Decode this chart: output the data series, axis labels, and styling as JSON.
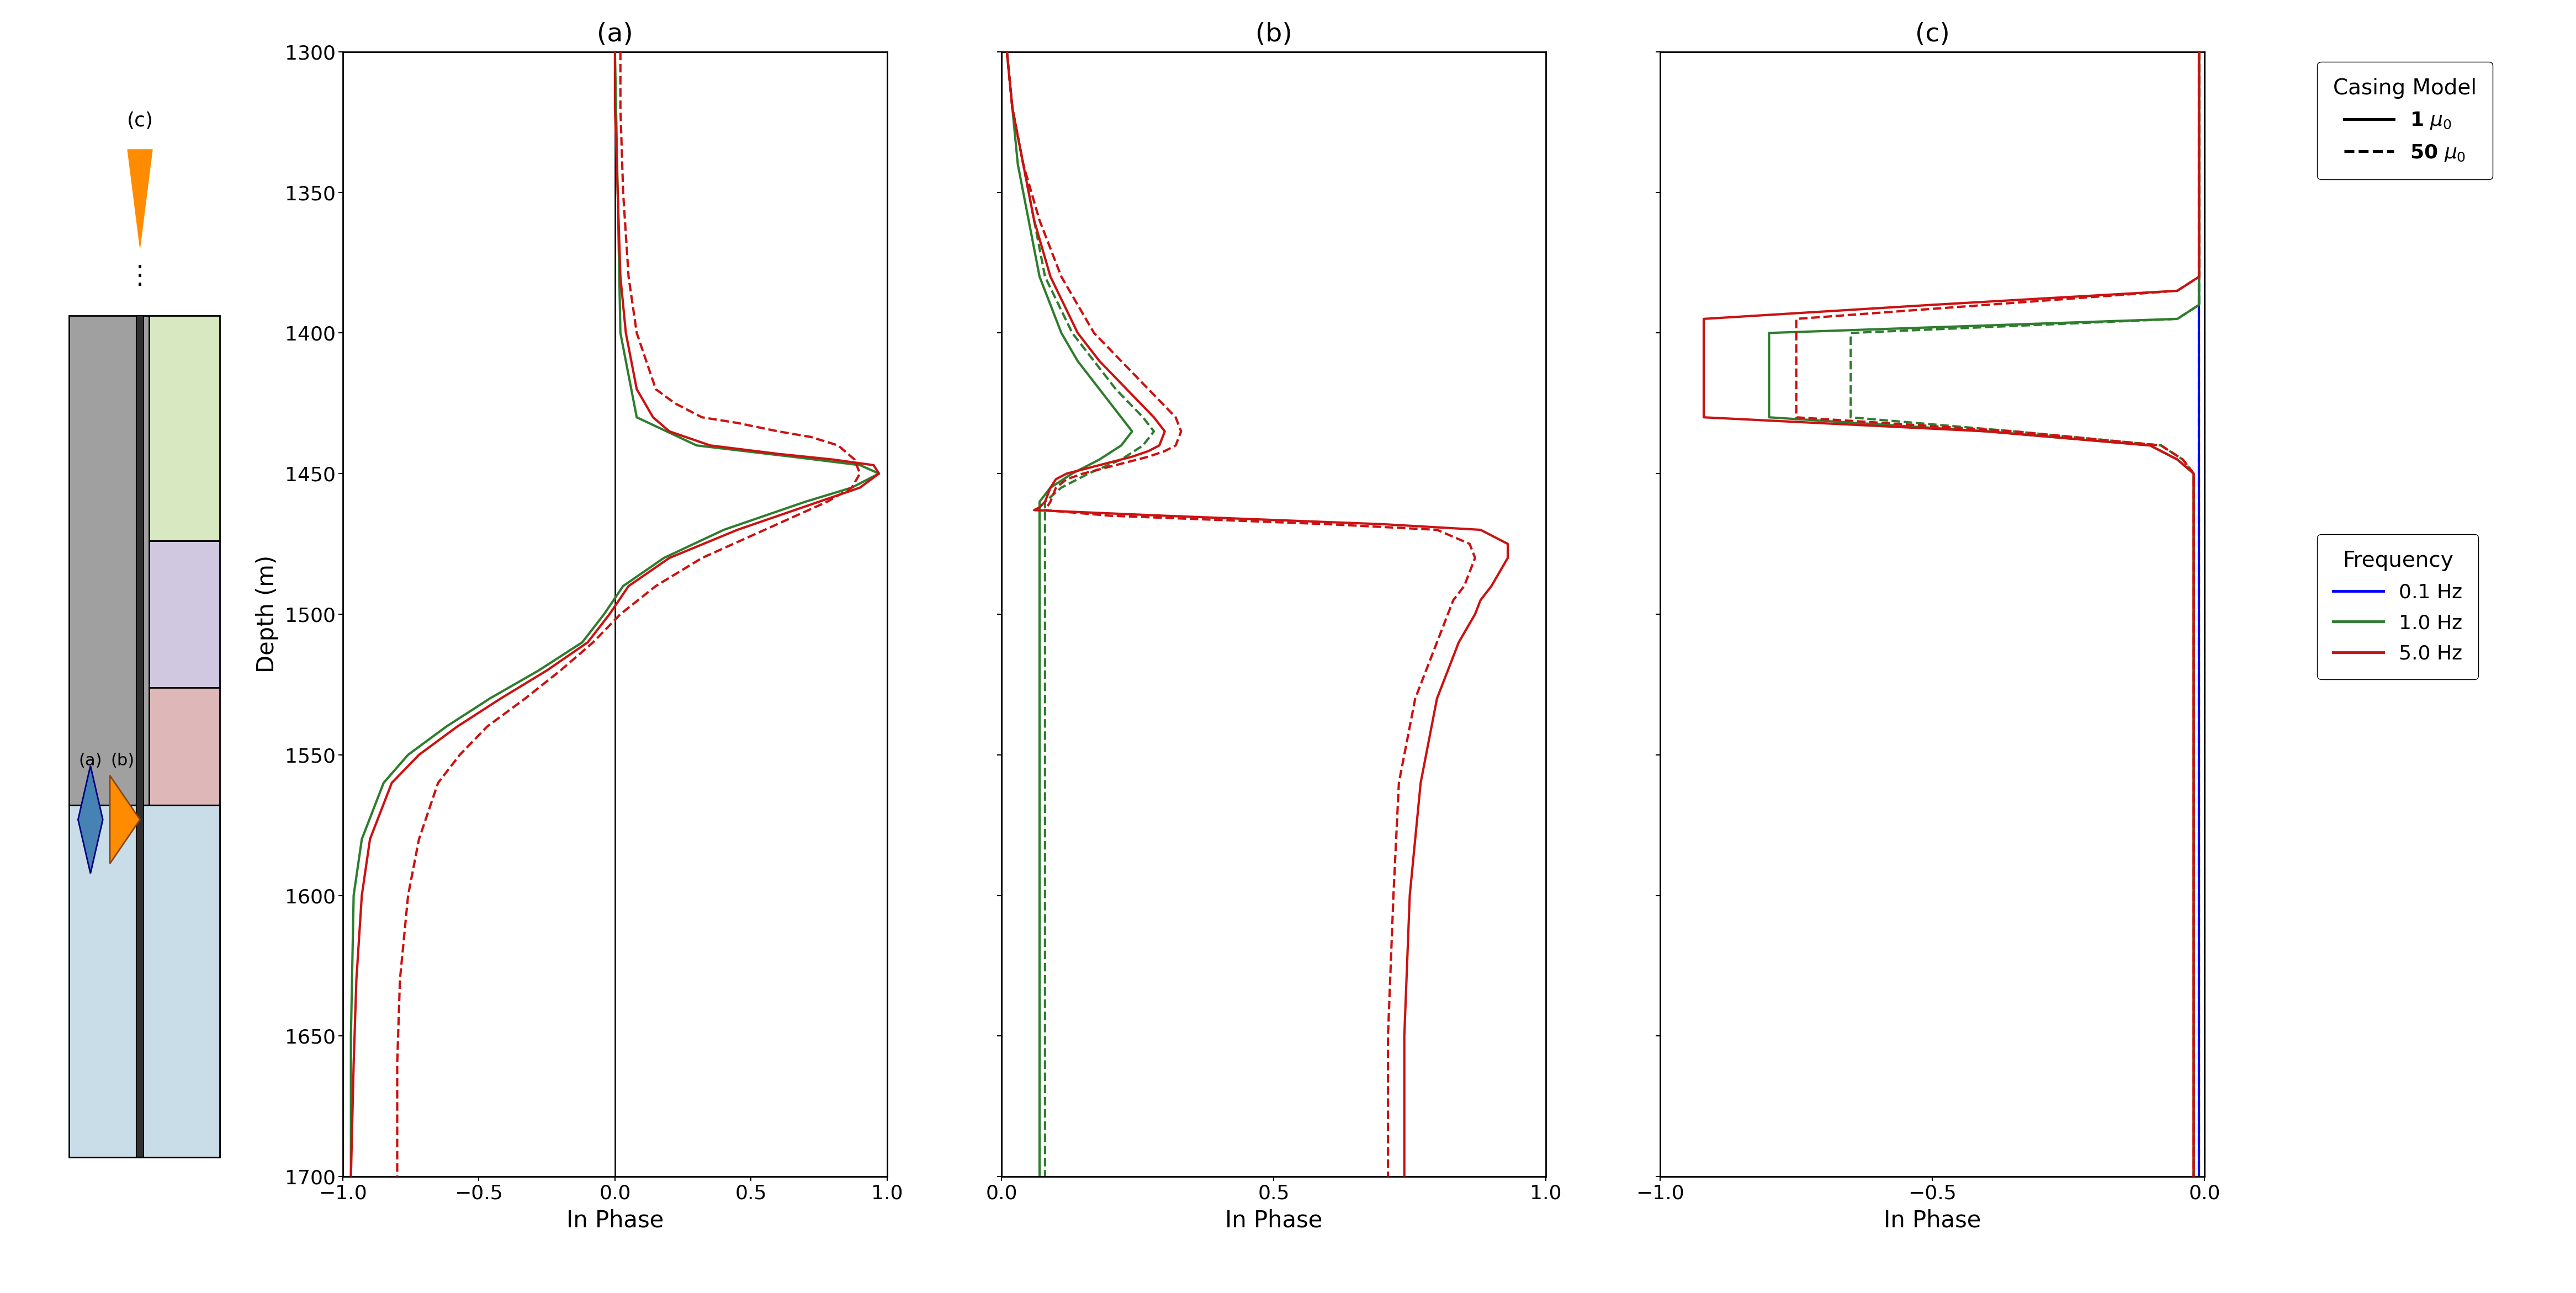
{
  "depth_range": [
    1300,
    1700
  ],
  "colors": {
    "blue": "#0000FF",
    "green": "#2E7D2E",
    "red": "#CC1111"
  },
  "panel_a": {
    "title": "(a)",
    "xlabel": "In Phase",
    "xlim": [
      -1.0,
      1.0
    ],
    "xticks": [
      -1.0,
      -0.5,
      0.0,
      0.5,
      1.0
    ],
    "red_solid": {
      "depth": [
        1300,
        1320,
        1350,
        1380,
        1400,
        1420,
        1430,
        1435,
        1440,
        1443,
        1445,
        1447,
        1450,
        1455,
        1460,
        1470,
        1480,
        1490,
        1500,
        1510,
        1520,
        1530,
        1540,
        1550,
        1560,
        1580,
        1600,
        1630,
        1660,
        1700
      ],
      "value": [
        0.0,
        0.0,
        0.01,
        0.02,
        0.04,
        0.08,
        0.14,
        0.2,
        0.35,
        0.6,
        0.8,
        0.95,
        0.97,
        0.9,
        0.75,
        0.45,
        0.2,
        0.05,
        -0.02,
        -0.1,
        -0.25,
        -0.42,
        -0.58,
        -0.72,
        -0.82,
        -0.9,
        -0.93,
        -0.95,
        -0.96,
        -0.97
      ]
    },
    "red_dashed": {
      "depth": [
        1300,
        1320,
        1350,
        1380,
        1400,
        1420,
        1425,
        1430,
        1432,
        1435,
        1437,
        1440,
        1445,
        1450,
        1455,
        1460,
        1470,
        1480,
        1490,
        1500,
        1510,
        1520,
        1530,
        1540,
        1550,
        1560,
        1580,
        1600,
        1630,
        1660,
        1700
      ],
      "value": [
        0.02,
        0.02,
        0.03,
        0.05,
        0.08,
        0.15,
        0.22,
        0.32,
        0.45,
        0.6,
        0.72,
        0.82,
        0.88,
        0.9,
        0.87,
        0.78,
        0.55,
        0.32,
        0.15,
        0.02,
        -0.08,
        -0.2,
        -0.33,
        -0.47,
        -0.57,
        -0.65,
        -0.72,
        -0.76,
        -0.79,
        -0.8,
        -0.8
      ]
    },
    "green_solid": {
      "depth": [
        1300,
        1400,
        1430,
        1440,
        1444,
        1447,
        1450,
        1455,
        1460,
        1470,
        1480,
        1490,
        1500,
        1510,
        1520,
        1530,
        1540,
        1550,
        1560,
        1580,
        1600,
        1650,
        1700
      ],
      "value": [
        0.0,
        0.02,
        0.08,
        0.3,
        0.65,
        0.9,
        0.97,
        0.87,
        0.7,
        0.4,
        0.18,
        0.03,
        -0.04,
        -0.12,
        -0.28,
        -0.46,
        -0.62,
        -0.76,
        -0.85,
        -0.93,
        -0.96,
        -0.97,
        -0.97
      ]
    }
  },
  "panel_b": {
    "title": "(b)",
    "xlabel": "In Phase",
    "xlim": [
      0.0,
      1.0
    ],
    "xticks": [
      0.0,
      0.5,
      1.0
    ],
    "red_solid": {
      "depth": [
        1300,
        1320,
        1340,
        1360,
        1380,
        1400,
        1410,
        1420,
        1430,
        1435,
        1440,
        1442,
        1444,
        1446,
        1448,
        1450,
        1452,
        1455,
        1460,
        1462,
        1463,
        1465,
        1468,
        1470,
        1475,
        1480,
        1490,
        1495,
        1500,
        1510,
        1520,
        1530,
        1540,
        1550,
        1560,
        1600,
        1650,
        1700
      ],
      "value": [
        0.01,
        0.02,
        0.04,
        0.06,
        0.09,
        0.14,
        0.18,
        0.23,
        0.28,
        0.3,
        0.29,
        0.27,
        0.24,
        0.2,
        0.16,
        0.12,
        0.1,
        0.09,
        0.08,
        0.07,
        0.06,
        0.3,
        0.7,
        0.88,
        0.93,
        0.93,
        0.9,
        0.88,
        0.87,
        0.84,
        0.82,
        0.8,
        0.79,
        0.78,
        0.77,
        0.75,
        0.74,
        0.74
      ]
    },
    "red_dashed": {
      "depth": [
        1300,
        1320,
        1340,
        1360,
        1380,
        1400,
        1410,
        1420,
        1430,
        1435,
        1440,
        1442,
        1444,
        1446,
        1448,
        1450,
        1452,
        1455,
        1460,
        1463,
        1465,
        1468,
        1470,
        1475,
        1480,
        1490,
        1495,
        1500,
        1510,
        1520,
        1530,
        1540,
        1550,
        1560,
        1600,
        1650,
        1700
      ],
      "value": [
        0.01,
        0.02,
        0.04,
        0.07,
        0.11,
        0.17,
        0.22,
        0.27,
        0.32,
        0.33,
        0.32,
        0.3,
        0.27,
        0.23,
        0.19,
        0.15,
        0.12,
        0.1,
        0.09,
        0.08,
        0.2,
        0.6,
        0.8,
        0.86,
        0.87,
        0.85,
        0.83,
        0.82,
        0.8,
        0.78,
        0.76,
        0.75,
        0.74,
        0.73,
        0.72,
        0.71,
        0.71
      ]
    },
    "green_solid": {
      "depth": [
        1300,
        1320,
        1340,
        1360,
        1380,
        1400,
        1410,
        1420,
        1430,
        1435,
        1440,
        1445,
        1450,
        1455,
        1460,
        1700
      ],
      "value": [
        0.01,
        0.02,
        0.03,
        0.05,
        0.07,
        0.11,
        0.14,
        0.18,
        0.22,
        0.24,
        0.22,
        0.18,
        0.13,
        0.09,
        0.07,
        0.07
      ]
    },
    "green_dashed": {
      "depth": [
        1300,
        1320,
        1340,
        1360,
        1380,
        1400,
        1410,
        1420,
        1430,
        1435,
        1440,
        1445,
        1450,
        1455,
        1460,
        1700
      ],
      "value": [
        0.01,
        0.02,
        0.04,
        0.06,
        0.08,
        0.13,
        0.17,
        0.21,
        0.26,
        0.28,
        0.26,
        0.22,
        0.16,
        0.11,
        0.08,
        0.08
      ]
    }
  },
  "panel_c": {
    "title": "(c)",
    "xlabel": "In Phase",
    "xlim": [
      -1.0,
      0.0
    ],
    "xticks": [
      -1.0,
      -0.5,
      0.0
    ],
    "blue_solid": {
      "depth": [
        1300,
        1380,
        1400,
        1405,
        1410,
        1420,
        1430,
        1440,
        1450,
        1460,
        1462,
        1700
      ],
      "value": [
        -0.01,
        -0.01,
        -0.01,
        -0.01,
        -0.01,
        -0.01,
        -0.01,
        -0.01,
        -0.01,
        -0.01,
        -0.01,
        -0.01
      ]
    },
    "blue_dashed": {
      "depth": [
        1300,
        1380,
        1400,
        1410,
        1420,
        1430,
        1440,
        1450,
        1460,
        1462,
        1700
      ],
      "value": [
        -0.01,
        -0.01,
        -0.01,
        -0.01,
        -0.01,
        -0.01,
        -0.01,
        -0.01,
        -0.01,
        -0.01,
        -0.01
      ]
    },
    "green_solid": {
      "depth": [
        1300,
        1390,
        1395,
        1400,
        1405,
        1410,
        1415,
        1420,
        1425,
        1430,
        1435,
        1440,
        1445,
        1450,
        1455,
        1460,
        1700
      ],
      "value": [
        -0.01,
        -0.01,
        -0.05,
        -0.8,
        -0.8,
        -0.8,
        -0.8,
        -0.8,
        -0.8,
        -0.8,
        -0.4,
        -0.1,
        -0.05,
        -0.02,
        -0.02,
        -0.02,
        -0.02
      ]
    },
    "green_dashed": {
      "depth": [
        1300,
        1390,
        1395,
        1400,
        1405,
        1410,
        1415,
        1420,
        1425,
        1430,
        1435,
        1440,
        1445,
        1450,
        1455,
        1460,
        1700
      ],
      "value": [
        -0.01,
        -0.01,
        -0.05,
        -0.65,
        -0.65,
        -0.65,
        -0.65,
        -0.65,
        -0.65,
        -0.65,
        -0.35,
        -0.08,
        -0.04,
        -0.02,
        -0.02,
        -0.02,
        -0.02
      ]
    },
    "red_solid": {
      "depth": [
        1300,
        1380,
        1385,
        1390,
        1395,
        1400,
        1402,
        1405,
        1410,
        1415,
        1420,
        1425,
        1430,
        1435,
        1440,
        1445,
        1450,
        1455,
        1460,
        1700
      ],
      "value": [
        -0.01,
        -0.01,
        -0.05,
        -0.5,
        -0.92,
        -0.92,
        -0.92,
        -0.92,
        -0.92,
        -0.92,
        -0.92,
        -0.92,
        -0.92,
        -0.4,
        -0.1,
        -0.05,
        -0.02,
        -0.02,
        -0.02,
        -0.02
      ]
    },
    "red_dashed": {
      "depth": [
        1300,
        1380,
        1385,
        1390,
        1395,
        1400,
        1402,
        1405,
        1410,
        1415,
        1420,
        1425,
        1430,
        1435,
        1440,
        1445,
        1450,
        1455,
        1460,
        1700
      ],
      "value": [
        -0.01,
        -0.01,
        -0.05,
        -0.4,
        -0.75,
        -0.75,
        -0.75,
        -0.75,
        -0.75,
        -0.75,
        -0.75,
        -0.75,
        -0.75,
        -0.35,
        -0.08,
        -0.04,
        -0.02,
        -0.02,
        -0.02,
        -0.02
      ]
    }
  },
  "geo_layers": {
    "layer_gray_color": "#A0A0A0",
    "layer_green_color": "#D8E8C0",
    "layer_purple_color": "#D0C8E0",
    "layer_pink_color": "#DEB8B8",
    "layer_blue_color": "#C8DDE8",
    "casing_color": "#303030"
  },
  "legend_casing_title": "Casing Model",
  "legend_freq_title": "Frequency"
}
